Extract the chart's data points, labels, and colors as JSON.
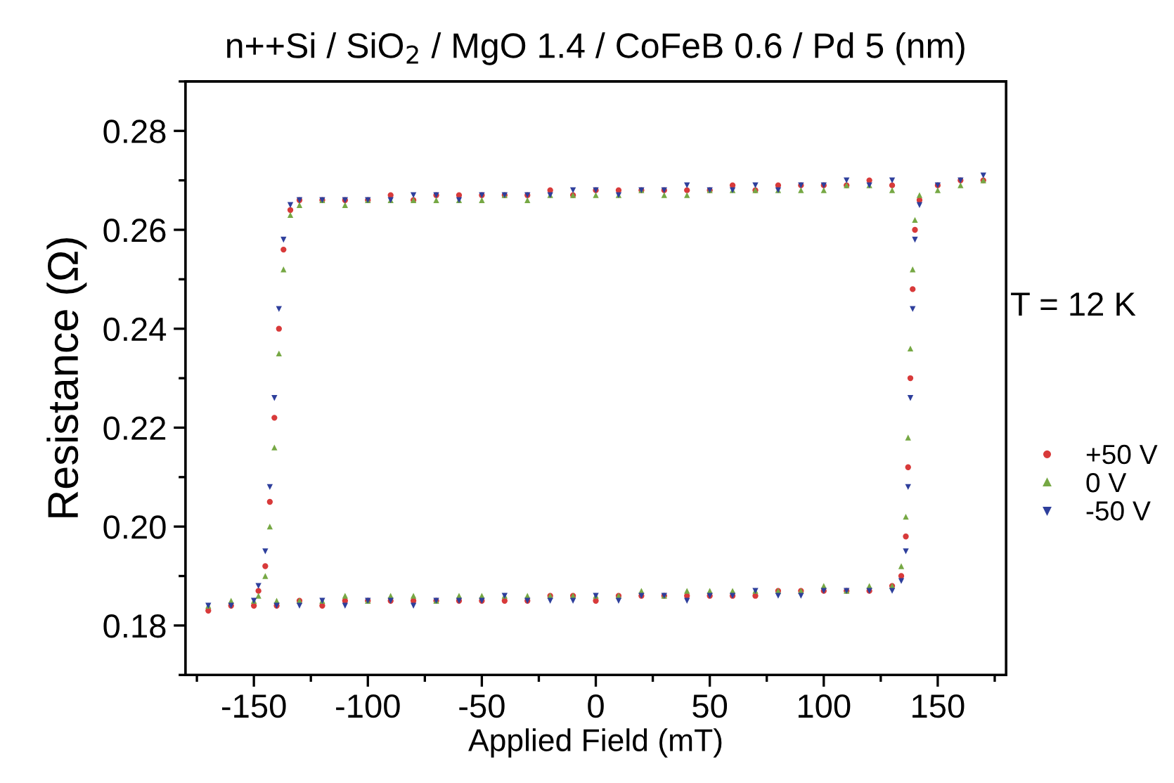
{
  "chart_data": {
    "type": "scatter",
    "title": "n++Si / SiO$_{2}$ / MgO 1.4 / CoFeB 0.6 / Pd 5 (nm)",
    "xlabel": "Applied Field (mT)",
    "ylabel": "Resistance (Ω)",
    "annotations": [
      "T = 12 K"
    ],
    "xlim": [
      -180,
      180
    ],
    "ylim": [
      0.17,
      0.29
    ],
    "xticks": [
      {
        "value": -175,
        "label": null
      },
      -150,
      {
        "value": -125,
        "label": null
      },
      -100,
      {
        "value": -75,
        "label": null
      },
      -50,
      {
        "value": -25,
        "label": null
      },
      0,
      {
        "value": 25,
        "label": null
      },
      50,
      {
        "value": 75,
        "label": null
      },
      100,
      {
        "value": 125,
        "label": null
      },
      150,
      {
        "value": 175,
        "label": null
      }
    ],
    "yticks": [
      {
        "value": 0.17,
        "label": null
      },
      0.18,
      {
        "value": 0.19,
        "label": null
      },
      {
        "value": 0.2,
        "label": "0.20"
      },
      {
        "value": 0.21,
        "label": null
      },
      0.22,
      {
        "value": 0.23,
        "label": null
      },
      0.24,
      {
        "value": 0.25,
        "label": null
      },
      0.26,
      {
        "value": 0.27,
        "label": null
      },
      0.28,
      {
        "value": 0.29,
        "label": null
      }
    ],
    "grid": false,
    "legend": "right",
    "x": [
      -170,
      -160,
      -150,
      -140,
      -130,
      -120,
      -110,
      -100,
      -90,
      -80,
      -70,
      -60,
      -50,
      -40,
      -30,
      -20,
      -10,
      0,
      10,
      20,
      30,
      40,
      50,
      60,
      70,
      80,
      90,
      100,
      110,
      120,
      130,
      134,
      136,
      137,
      138,
      139,
      140,
      142,
      150,
      160,
      170,
      130,
      120,
      110,
      100,
      90,
      80,
      70,
      60,
      50,
      40,
      30,
      20,
      10,
      0,
      -10,
      -20,
      -30,
      -40,
      -50,
      -60,
      -70,
      -80,
      -90,
      -100,
      -110,
      -120,
      -130,
      -134,
      -137,
      -139,
      -141,
      -143,
      -145,
      -148
    ],
    "series": [
      {
        "name": "+50 V",
        "color": "#d83a3a",
        "marker": "circle",
        "values": [
          0.183,
          0.184,
          0.184,
          0.184,
          0.185,
          0.184,
          0.185,
          0.185,
          0.185,
          0.185,
          0.185,
          0.185,
          0.185,
          0.185,
          0.185,
          0.186,
          0.186,
          0.185,
          0.186,
          0.186,
          0.186,
          0.186,
          0.186,
          0.186,
          0.186,
          0.187,
          0.187,
          0.187,
          0.187,
          0.187,
          0.188,
          0.19,
          0.198,
          0.212,
          0.23,
          0.248,
          0.26,
          0.266,
          0.269,
          0.27,
          0.27,
          0.269,
          0.27,
          0.269,
          0.269,
          0.269,
          0.269,
          0.268,
          0.269,
          0.268,
          0.268,
          0.268,
          0.268,
          0.268,
          0.268,
          0.267,
          0.268,
          0.267,
          0.267,
          0.267,
          0.267,
          0.267,
          0.266,
          0.267,
          0.266,
          0.266,
          0.266,
          0.266,
          0.264,
          0.256,
          0.24,
          0.222,
          0.205,
          0.192,
          0.187
        ]
      },
      {
        "name": "0 V",
        "color": "#76a844",
        "marker": "triangle",
        "values": [
          0.184,
          0.185,
          0.185,
          0.185,
          0.185,
          0.185,
          0.186,
          0.185,
          0.186,
          0.186,
          0.185,
          0.186,
          0.186,
          0.186,
          0.186,
          0.186,
          0.186,
          0.186,
          0.186,
          0.187,
          0.186,
          0.187,
          0.187,
          0.187,
          0.187,
          0.187,
          0.187,
          0.188,
          0.187,
          0.188,
          0.188,
          0.192,
          0.202,
          0.218,
          0.236,
          0.252,
          0.262,
          0.267,
          0.268,
          0.269,
          0.27,
          0.268,
          0.269,
          0.269,
          0.268,
          0.268,
          0.268,
          0.268,
          0.268,
          0.268,
          0.267,
          0.267,
          0.268,
          0.267,
          0.267,
          0.267,
          0.267,
          0.266,
          0.267,
          0.266,
          0.266,
          0.266,
          0.266,
          0.266,
          0.266,
          0.265,
          0.266,
          0.265,
          0.263,
          0.252,
          0.235,
          0.216,
          0.2,
          0.19,
          0.186
        ]
      },
      {
        "name": "-50 V",
        "color": "#2e3f9c",
        "marker": "triangle-down",
        "values": [
          0.184,
          0.184,
          0.185,
          0.184,
          0.184,
          0.185,
          0.184,
          0.185,
          0.185,
          0.184,
          0.185,
          0.185,
          0.185,
          0.186,
          0.185,
          0.185,
          0.185,
          0.186,
          0.185,
          0.186,
          0.186,
          0.185,
          0.186,
          0.186,
          0.187,
          0.186,
          0.186,
          0.187,
          0.187,
          0.187,
          0.187,
          0.189,
          0.195,
          0.208,
          0.226,
          0.244,
          0.258,
          0.265,
          0.269,
          0.27,
          0.271,
          0.27,
          0.269,
          0.27,
          0.269,
          0.269,
          0.268,
          0.269,
          0.268,
          0.268,
          0.269,
          0.268,
          0.268,
          0.267,
          0.268,
          0.268,
          0.267,
          0.267,
          0.267,
          0.267,
          0.266,
          0.267,
          0.267,
          0.266,
          0.266,
          0.266,
          0.266,
          0.266,
          0.265,
          0.258,
          0.244,
          0.226,
          0.208,
          0.195,
          0.188
        ]
      }
    ]
  }
}
